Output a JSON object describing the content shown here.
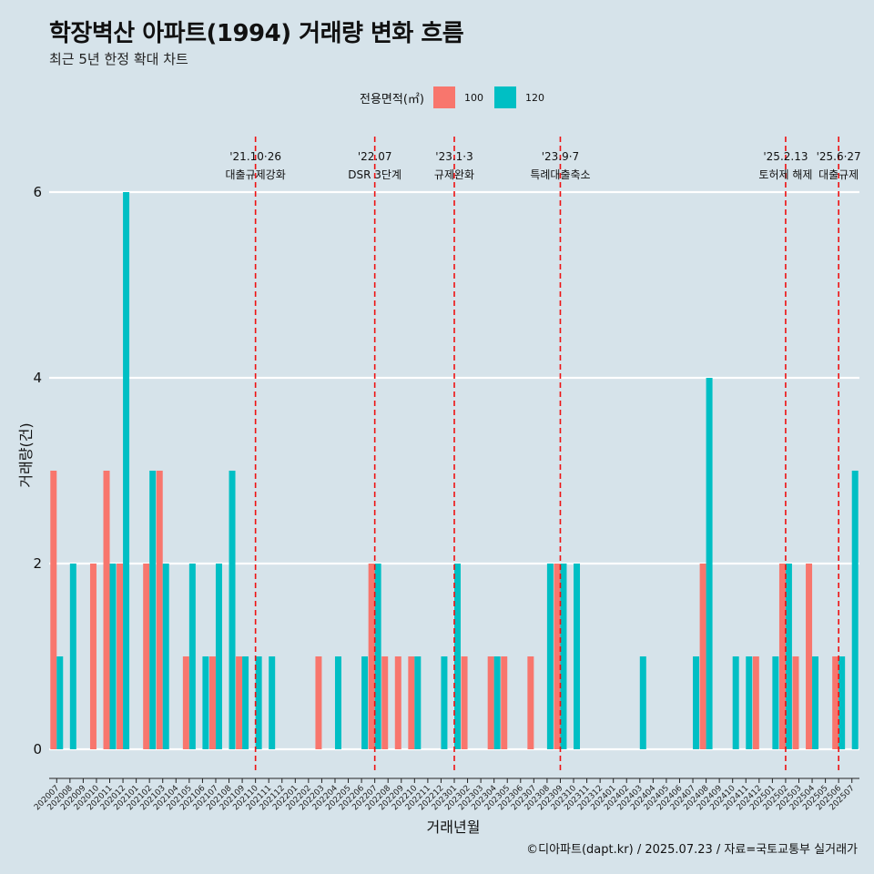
{
  "title": "학장벽산 아파트(1994) 거래량 변화 흐름",
  "subtitle": "최근 5년 한정 확대 차트",
  "legend": {
    "title": "전용면적(㎡)",
    "items": [
      {
        "label": "100",
        "color": "#f8766d"
      },
      {
        "label": "120",
        "color": "#00bfc4"
      }
    ]
  },
  "caption": "©디아파트(dapt.kr) / 2025.07.23 / 자료=국토교통부 실거래가",
  "chart_data": {
    "type": "bar",
    "title": "학장벽산 아파트(1994) 거래량 변화 흐름",
    "xlabel": "거래년월",
    "ylabel": "거래량(건)",
    "ylim": [
      0,
      6
    ],
    "yticks": [
      0,
      2,
      4,
      6
    ],
    "categories": [
      "202007",
      "202008",
      "202009",
      "202010",
      "202011",
      "202012",
      "202101",
      "202102",
      "202103",
      "202104",
      "202105",
      "202106",
      "202107",
      "202108",
      "202109",
      "202110",
      "202111",
      "202112",
      "202201",
      "202202",
      "202203",
      "202204",
      "202205",
      "202206",
      "202207",
      "202208",
      "202209",
      "202210",
      "202211",
      "202212",
      "202301",
      "202302",
      "202303",
      "202304",
      "202305",
      "202306",
      "202307",
      "202308",
      "202309",
      "202310",
      "202311",
      "202312",
      "202401",
      "202402",
      "202403",
      "202404",
      "202405",
      "202406",
      "202407",
      "202408",
      "202409",
      "202410",
      "202411",
      "202412",
      "202501",
      "202502",
      "202503",
      "202504",
      "202505",
      "202506",
      "202507"
    ],
    "series": [
      {
        "name": "100",
        "color": "#f8766d",
        "values": [
          3,
          0,
          0,
          2,
          3,
          2,
          0,
          2,
          3,
          0,
          1,
          0,
          1,
          0,
          1,
          0,
          0,
          0,
          0,
          0,
          1,
          0,
          0,
          0,
          2,
          1,
          1,
          1,
          0,
          0,
          0,
          1,
          0,
          1,
          1,
          0,
          1,
          0,
          2,
          0,
          0,
          0,
          0,
          0,
          0,
          0,
          0,
          0,
          0,
          2,
          0,
          0,
          0,
          1,
          0,
          2,
          1,
          2,
          0,
          1,
          0
        ]
      },
      {
        "name": "120",
        "color": "#00bfc4",
        "values": [
          1,
          2,
          0,
          0,
          2,
          6,
          0,
          3,
          2,
          0,
          2,
          1,
          2,
          3,
          1,
          1,
          1,
          0,
          0,
          0,
          0,
          1,
          0,
          1,
          2,
          0,
          0,
          1,
          0,
          1,
          2,
          0,
          0,
          1,
          0,
          0,
          0,
          2,
          2,
          2,
          0,
          0,
          0,
          0,
          1,
          0,
          0,
          0,
          1,
          4,
          0,
          1,
          1,
          0,
          1,
          2,
          0,
          1,
          0,
          1,
          3
        ]
      }
    ],
    "events": [
      {
        "date": "'21.10·26",
        "label": "대출규제강화",
        "x": "202110"
      },
      {
        "date": "'22.07",
        "label": "DSR 3단계",
        "x": "202207"
      },
      {
        "date": "'23.1·3",
        "label": "규제완화",
        "x": "202301"
      },
      {
        "date": "'23.9·7",
        "label": "특례대출축소",
        "x": "202309"
      },
      {
        "date": "'25.2.13",
        "label": "토허제 해제",
        "x": "202502"
      },
      {
        "date": "'25.6·27",
        "label": "대출규제",
        "x": "202506"
      }
    ]
  }
}
